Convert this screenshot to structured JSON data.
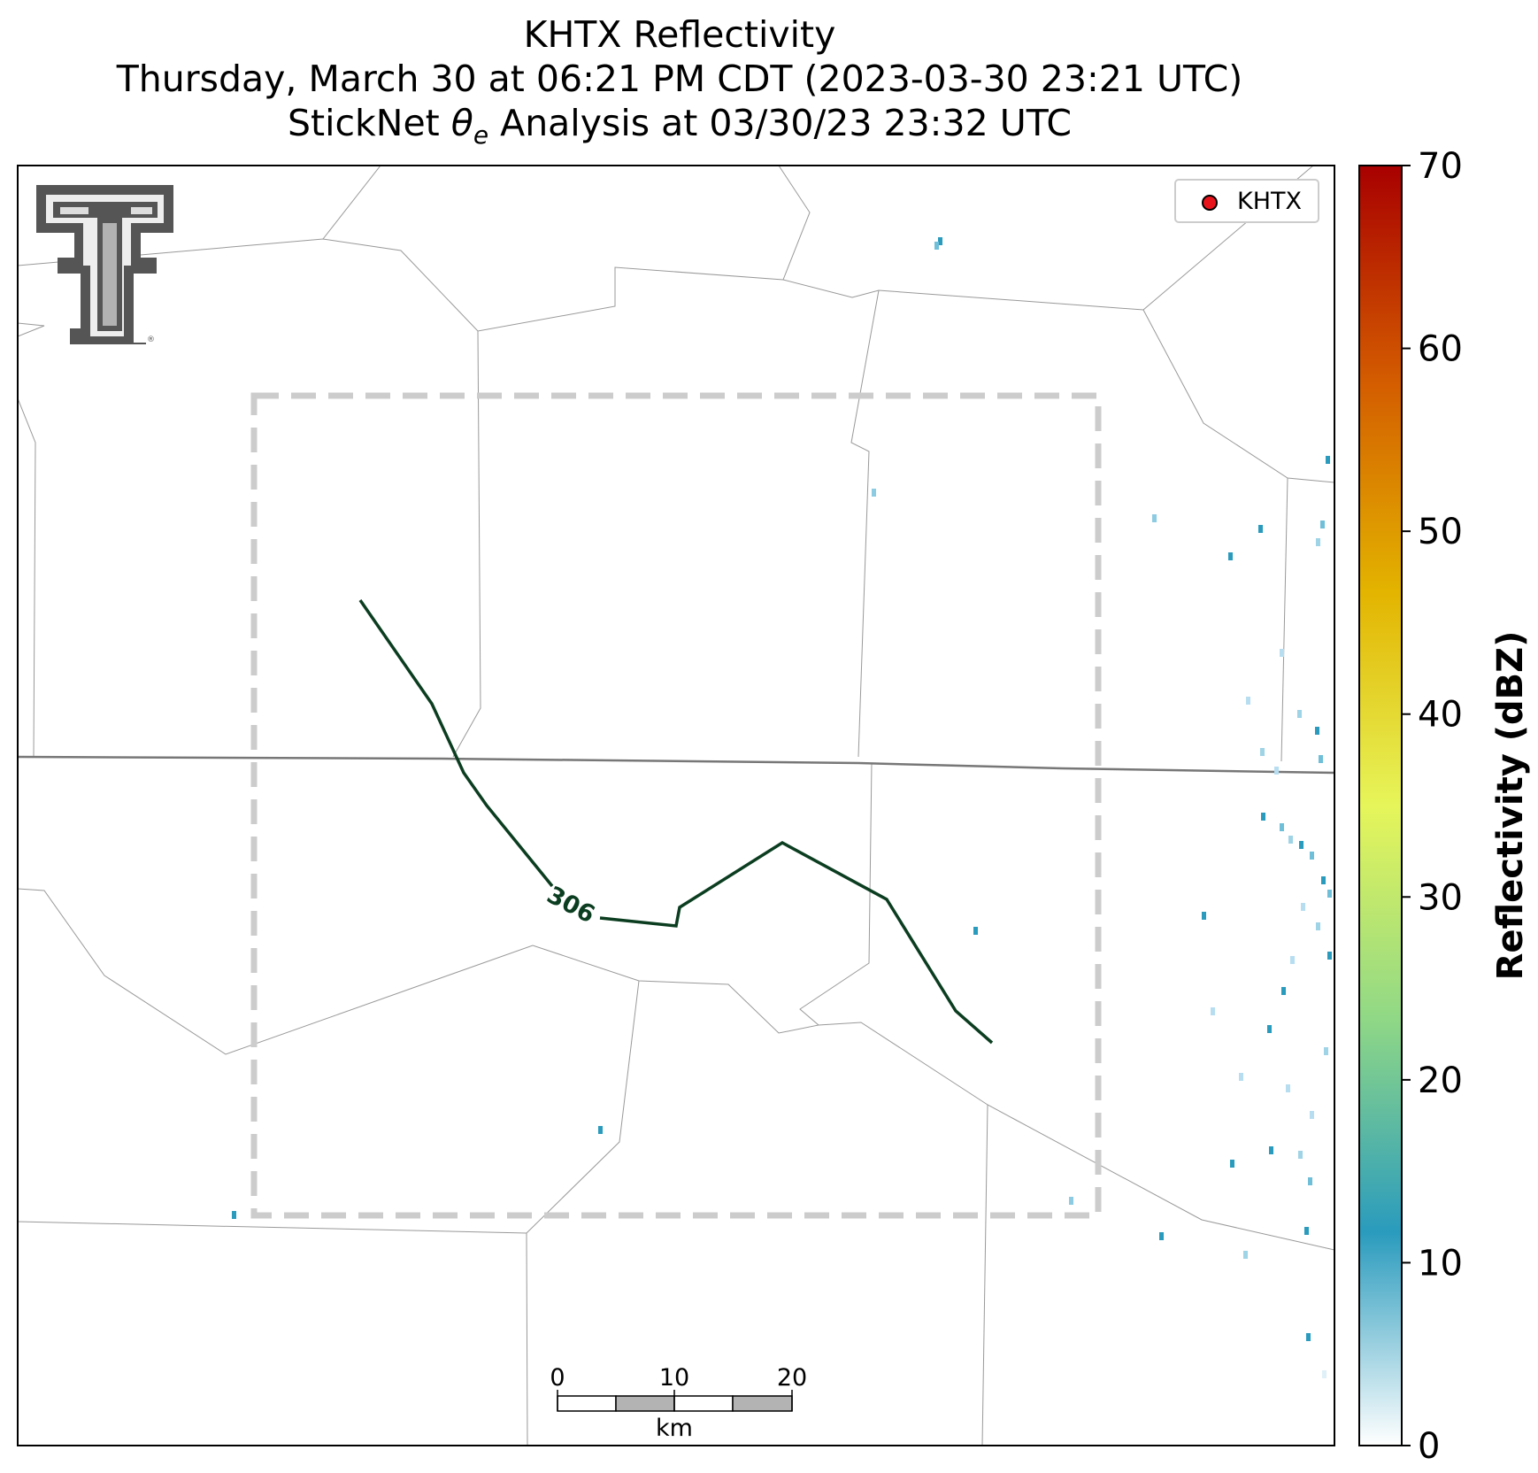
{
  "title": {
    "line1": "KHTX Reflectivity",
    "line2": "Thursday, March 30 at 06:21 PM CDT (2023-03-30 23:21 UTC)",
    "line3_prefix": "StickNet ",
    "line3_theta": "θ",
    "line3_sub": "e",
    "line3_suffix": " Analysis at 03/30/23 23:32 UTC"
  },
  "legend": {
    "label": "KHTX",
    "marker_color": "#e8141c"
  },
  "contour": {
    "label": "306",
    "color": "#0b3d20"
  },
  "scale_bar": {
    "tick_labels": [
      "0",
      "10",
      "20"
    ],
    "unit": "km"
  },
  "colorbar": {
    "label": "Reflectivity (dBZ)",
    "ticks": [
      "0",
      "10",
      "20",
      "30",
      "40",
      "50",
      "60",
      "70"
    ],
    "min": 0,
    "max": 70,
    "colors": [
      "#ffffff",
      "#2a9bbd",
      "#90d886",
      "#e6f55a",
      "#e3b400",
      "#d35b00",
      "#a80000"
    ]
  },
  "styles": {
    "analysis_box_color": "#cccccc",
    "border_color": "#777777",
    "county_line_color": "#999999",
    "logo_color": "#555555"
  }
}
